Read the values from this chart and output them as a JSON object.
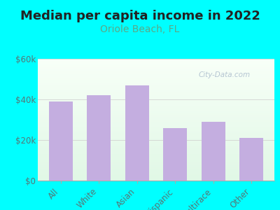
{
  "title": "Median per capita income in 2022",
  "subtitle": "Oriole Beach, FL",
  "categories": [
    "All",
    "White",
    "Asian",
    "Hispanic",
    "Multirace",
    "Other"
  ],
  "values": [
    39000,
    42000,
    47000,
    26000,
    29000,
    21000
  ],
  "bar_color": "#c4aee0",
  "background_color": "#00FFFF",
  "title_color": "#222222",
  "subtitle_color": "#5aaa88",
  "tick_label_color": "#557777",
  "watermark_text": "City-Data.com",
  "watermark_color": "#aabbcc",
  "ylim": [
    0,
    60000
  ],
  "yticks": [
    0,
    20000,
    40000,
    60000
  ],
  "ytick_labels": [
    "$0",
    "$20k",
    "$40k",
    "$60k"
  ],
  "title_fontsize": 13,
  "subtitle_fontsize": 10,
  "tick_fontsize": 8.5
}
